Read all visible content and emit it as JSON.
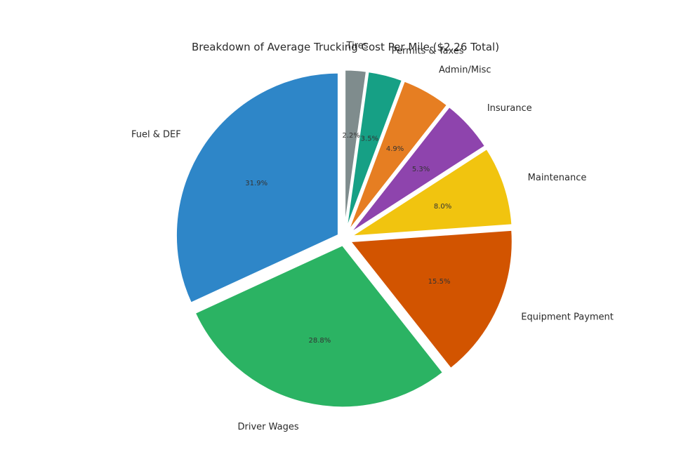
{
  "chart_data": {
    "type": "pie",
    "title": "Breakdown of Average Trucking Cost Per Mile ($2.26 Total)",
    "start_angle_deg": 90,
    "direction": "counterclockwise",
    "slices": [
      {
        "label": "Fuel & DEF",
        "value": 31.9,
        "pct_text": "31.9%",
        "color": "#2e86c8",
        "explode": true
      },
      {
        "label": "Driver Wages",
        "value": 28.8,
        "pct_text": "28.8%",
        "color": "#2bb363",
        "explode": true
      },
      {
        "label": "Equipment Payment",
        "value": 15.5,
        "pct_text": "15.5%",
        "color": "#d25400",
        "explode": true
      },
      {
        "label": "Maintenance",
        "value": 8.0,
        "pct_text": "8.0%",
        "color": "#f1c40f",
        "explode": true
      },
      {
        "label": "Insurance",
        "value": 5.3,
        "pct_text": "5.3%",
        "color": "#8e44ad",
        "explode": true
      },
      {
        "label": "Admin/Misc",
        "value": 4.9,
        "pct_text": "4.9%",
        "color": "#e67e22",
        "explode": true
      },
      {
        "label": "Permits & Taxes",
        "value": 3.5,
        "pct_text": "3.5%",
        "color": "#16a085",
        "explode": true
      },
      {
        "label": "Tires",
        "value": 2.2,
        "pct_text": "2.2%",
        "color": "#7f8c8d",
        "explode": true
      }
    ]
  }
}
